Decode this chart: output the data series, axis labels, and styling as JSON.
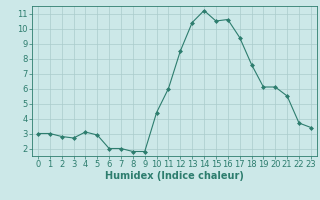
{
  "x": [
    0,
    1,
    2,
    3,
    4,
    5,
    6,
    7,
    8,
    9,
    10,
    11,
    12,
    13,
    14,
    15,
    16,
    17,
    18,
    19,
    20,
    21,
    22,
    23
  ],
  "y": [
    3.0,
    3.0,
    2.8,
    2.7,
    3.1,
    2.9,
    2.0,
    2.0,
    1.8,
    1.8,
    4.4,
    6.0,
    8.5,
    10.4,
    11.2,
    10.5,
    10.6,
    9.4,
    7.6,
    6.1,
    6.1,
    5.5,
    3.7,
    3.4
  ],
  "line_color": "#2d7d6e",
  "marker": "D",
  "marker_size": 2,
  "bg_color": "#cce8e8",
  "grid_color": "#aacccc",
  "xlabel": "Humidex (Indice chaleur)",
  "xlim": [
    -0.5,
    23.5
  ],
  "ylim": [
    1.5,
    11.5
  ],
  "yticks": [
    2,
    3,
    4,
    5,
    6,
    7,
    8,
    9,
    10,
    11
  ],
  "xticks": [
    0,
    1,
    2,
    3,
    4,
    5,
    6,
    7,
    8,
    9,
    10,
    11,
    12,
    13,
    14,
    15,
    16,
    17,
    18,
    19,
    20,
    21,
    22,
    23
  ],
  "tick_fontsize": 6,
  "xlabel_fontsize": 7,
  "label_color": "#2d7d6e"
}
